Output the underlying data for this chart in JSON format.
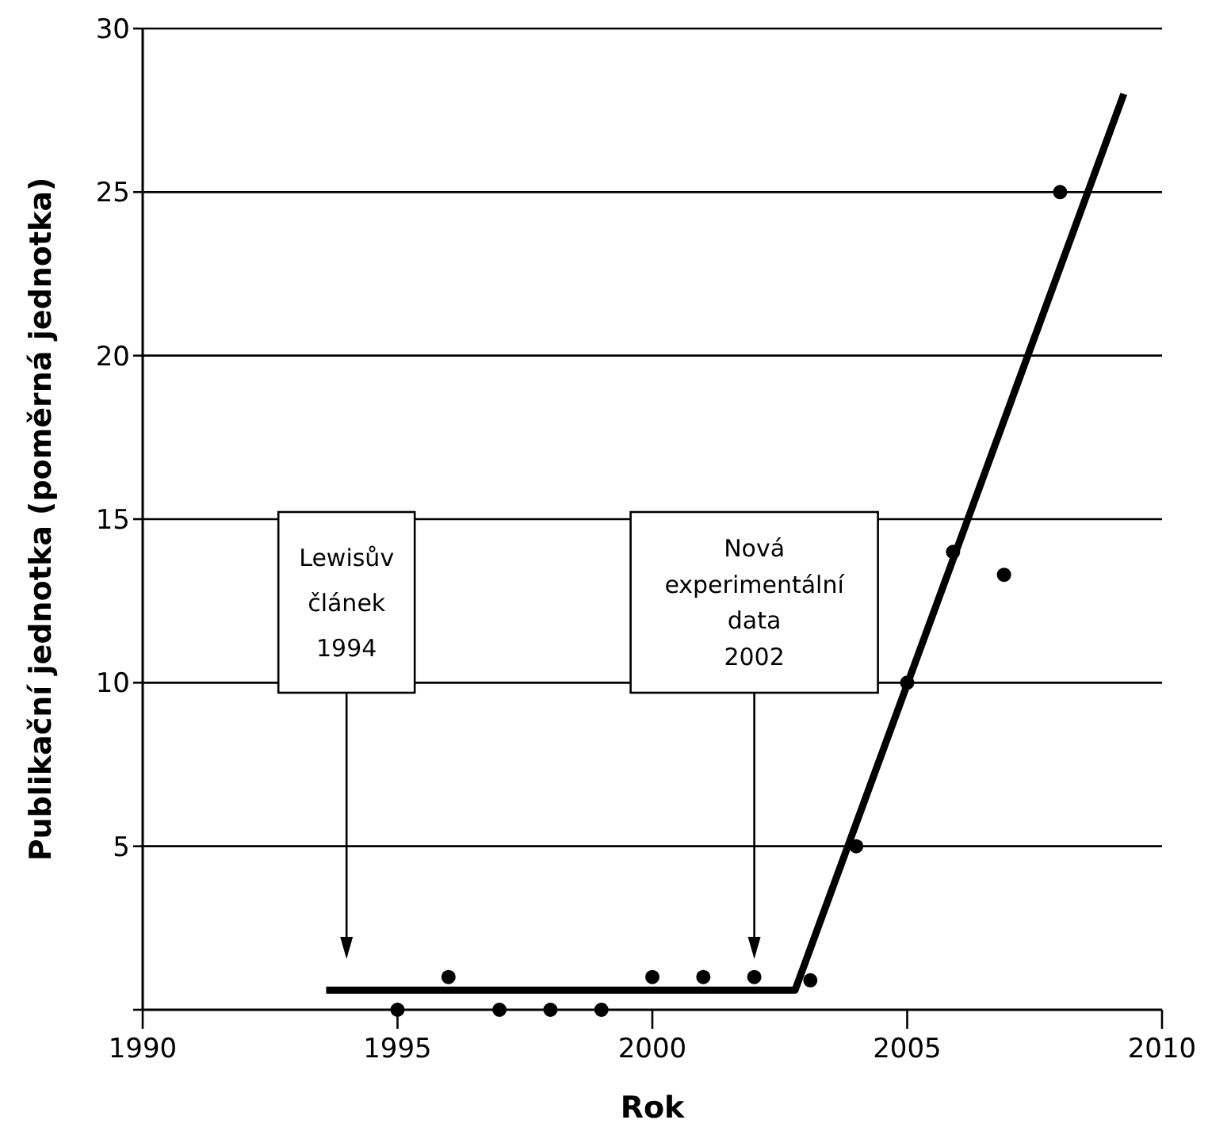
{
  "chart_data": {
    "type": "scatter",
    "xlabel": "Rok",
    "ylabel": "Publikační jednotka (poměrná jednotka)",
    "xlim": [
      1990,
      2010
    ],
    "xticks": [
      1990,
      1995,
      2000,
      2005,
      2010
    ],
    "ylim": [
      0,
      30
    ],
    "yticks": [
      {
        "value": 0,
        "label": null
      },
      5,
      10,
      15,
      20,
      25,
      30
    ],
    "grid": "y",
    "series": [
      {
        "color": "#000000",
        "marker": "circle",
        "x": [
          1995,
          1996,
          1997,
          1998,
          1999,
          2000,
          2001,
          2002,
          2003.1,
          2004,
          2005,
          2005.9,
          2006.9,
          2008
        ],
        "values": [
          0,
          1,
          0,
          0,
          0,
          1,
          1,
          1,
          0.9,
          5,
          10,
          14,
          13.3,
          25
        ]
      },
      {
        "type": "line",
        "color": "#000000",
        "marker": "none",
        "line_style": "solid",
        "x": [
          1993.6,
          2002.8,
          2009.25
        ],
        "values": [
          0.6,
          0.6,
          28
        ]
      }
    ],
    "annotations": [
      "Lewisův\nčlánek\n1994",
      {
        "text": "Nová\nexperimentální\ndata\n2002",
        "x": 2002
      }
    ]
  }
}
